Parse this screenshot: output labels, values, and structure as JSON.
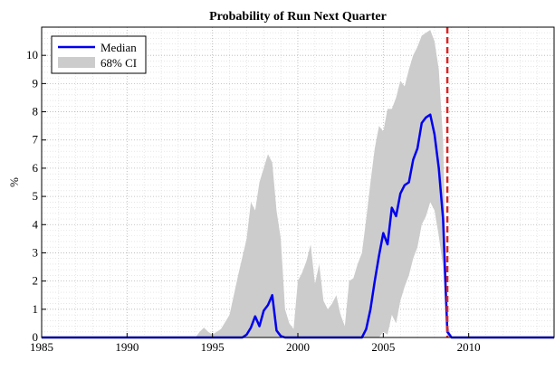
{
  "chart_data": {
    "type": "line",
    "title": "Probability of Run Next Quarter",
    "xlabel": "",
    "ylabel": "%",
    "xlim": [
      1985,
      2015
    ],
    "ylim": [
      0,
      11
    ],
    "x_ticks": [
      1985,
      1990,
      1995,
      2000,
      2005,
      2010
    ],
    "y_ticks": [
      0,
      1,
      2,
      3,
      4,
      5,
      6,
      7,
      8,
      9,
      10
    ],
    "grid": true,
    "legend_position": "top-left",
    "vline": {
      "x": 2008.75,
      "color": "#d62728",
      "style": "dashed"
    },
    "series": [
      {
        "name": "Median",
        "color": "#0000ee",
        "x": [
          1985,
          1996.75,
          1997,
          1997.25,
          1997.5,
          1997.75,
          1998,
          1998.25,
          1998.5,
          1998.75,
          1999,
          1999.25,
          2000,
          2003.75,
          2004,
          2004.25,
          2004.5,
          2004.75,
          2005,
          2005.25,
          2005.5,
          2005.75,
          2006,
          2006.25,
          2006.5,
          2006.75,
          2007,
          2007.25,
          2007.5,
          2007.75,
          2008,
          2008.25,
          2008.5,
          2008.75,
          2009,
          2015
        ],
        "values": [
          0,
          0,
          0.1,
          0.35,
          0.75,
          0.4,
          0.95,
          1.15,
          1.5,
          0.25,
          0.05,
          0,
          0,
          0,
          0.3,
          1.0,
          2.0,
          2.9,
          3.7,
          3.3,
          4.6,
          4.3,
          5.1,
          5.4,
          5.5,
          6.3,
          6.7,
          7.6,
          7.8,
          7.9,
          7.2,
          6.0,
          4.2,
          0.2,
          0,
          0
        ]
      },
      {
        "name": "68% CI",
        "color": "#cccccc",
        "x": [
          1985,
          1994,
          1994.25,
          1994.5,
          1994.75,
          1995,
          1995.5,
          1996,
          1996.5,
          1997,
          1997.25,
          1997.5,
          1997.75,
          1998,
          1998.25,
          1998.5,
          1998.75,
          1999,
          1999.25,
          1999.5,
          1999.75,
          2000,
          2000.25,
          2000.5,
          2000.75,
          2001,
          2001.25,
          2001.5,
          2001.75,
          2002,
          2002.25,
          2002.5,
          2002.75,
          2003,
          2003.25,
          2003.5,
          2003.75,
          2004,
          2004.25,
          2004.5,
          2004.75,
          2005,
          2005.25,
          2005.5,
          2005.75,
          2006,
          2006.25,
          2006.5,
          2006.75,
          2007,
          2007.25,
          2007.5,
          2007.75,
          2008,
          2008.25,
          2008.5,
          2008.75,
          2009,
          2015
        ],
        "upper": [
          0,
          0,
          0.2,
          0.35,
          0.2,
          0.1,
          0.3,
          0.8,
          2.2,
          3.5,
          4.8,
          4.5,
          5.5,
          6.0,
          6.5,
          6.2,
          4.5,
          3.5,
          1.0,
          0.5,
          0.3,
          2.0,
          2.3,
          2.7,
          3.3,
          1.9,
          2.6,
          1.3,
          1.0,
          1.2,
          1.5,
          0.8,
          0.4,
          2.0,
          2.1,
          2.6,
          3.0,
          4.2,
          5.5,
          6.7,
          7.5,
          7.3,
          8.1,
          8.1,
          8.5,
          9.1,
          8.9,
          9.5,
          10.0,
          10.3,
          10.7,
          10.8,
          10.9,
          10.5,
          9.5,
          7.0,
          0.5,
          0,
          0
        ],
        "lower": [
          0,
          0,
          0,
          0,
          0,
          0,
          0,
          0,
          0,
          0,
          0,
          0,
          0,
          0,
          0,
          0,
          0,
          0,
          0,
          0,
          0,
          0,
          0,
          0,
          0,
          0,
          0,
          0,
          0,
          0,
          0,
          0,
          0,
          0,
          0,
          0,
          0,
          0,
          0,
          0,
          0,
          0.2,
          0.1,
          0.8,
          0.5,
          1.3,
          1.8,
          2.2,
          2.8,
          3.2,
          4.0,
          4.3,
          4.8,
          4.5,
          3.6,
          2.5,
          0.05,
          0,
          0
        ]
      }
    ]
  }
}
